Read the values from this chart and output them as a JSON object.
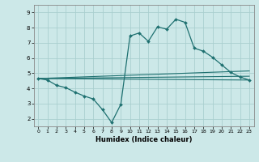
{
  "xlabel": "Humidex (Indice chaleur)",
  "bg_color": "#cce8e8",
  "grid_color": "#aacfcf",
  "line_color": "#1e7070",
  "x_ticks": [
    0,
    1,
    2,
    3,
    4,
    5,
    6,
    7,
    8,
    9,
    10,
    11,
    12,
    13,
    14,
    15,
    16,
    17,
    18,
    19,
    20,
    21,
    22,
    23
  ],
  "y_ticks": [
    2,
    3,
    4,
    5,
    6,
    7,
    8,
    9
  ],
  "xlim": [
    -0.5,
    23.5
  ],
  "ylim": [
    1.5,
    9.5
  ],
  "line1_x": [
    0,
    1,
    2,
    3,
    4,
    5,
    6,
    7,
    8,
    9,
    10,
    11,
    12,
    13,
    14,
    15,
    16,
    17,
    18,
    19,
    20,
    21,
    22,
    23
  ],
  "line1_y": [
    4.65,
    4.55,
    4.2,
    4.05,
    3.75,
    3.5,
    3.3,
    2.6,
    1.75,
    2.95,
    7.45,
    7.65,
    7.1,
    8.05,
    7.9,
    8.55,
    8.35,
    6.65,
    6.45,
    6.05,
    5.55,
    5.05,
    4.75,
    4.55
  ],
  "line2_x": [
    0,
    23
  ],
  "line2_y": [
    4.65,
    4.55
  ],
  "line3_x": [
    0,
    23
  ],
  "line3_y": [
    4.65,
    5.15
  ],
  "line4_x": [
    0,
    23
  ],
  "line4_y": [
    4.65,
    4.8
  ]
}
